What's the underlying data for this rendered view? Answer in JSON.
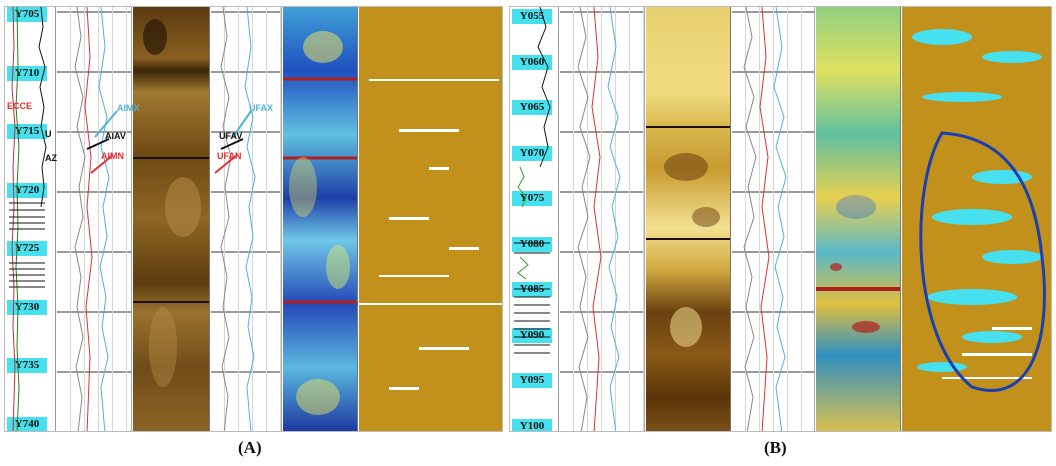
{
  "panel_a": {
    "depths": [
      "Y705",
      "Y710",
      "Y715",
      "Y720",
      "Y725",
      "Y730",
      "Y735",
      "Y740"
    ],
    "side_labels": [
      "ECCE",
      "U",
      "AZ"
    ],
    "curve_labels_left": {
      "top": "AIMX",
      "mid": "AIAV",
      "low": "AIMN"
    },
    "curve_labels_right": {
      "top": "UFAX",
      "mid": "UFAV",
      "low": "UFAN"
    },
    "colors": {
      "top": "#4fb3d9",
      "mid": "#111111",
      "low": "#e03030"
    }
  },
  "panel_b": {
    "depths": [
      "Y055",
      "Y060",
      "Y065",
      "Y070",
      "Y075",
      "Y080",
      "Y085",
      "Y090",
      "Y095",
      "Y100"
    ],
    "outline_color": "#1a3fb0"
  },
  "captions": {
    "a": "(A)",
    "b": "(B)"
  }
}
